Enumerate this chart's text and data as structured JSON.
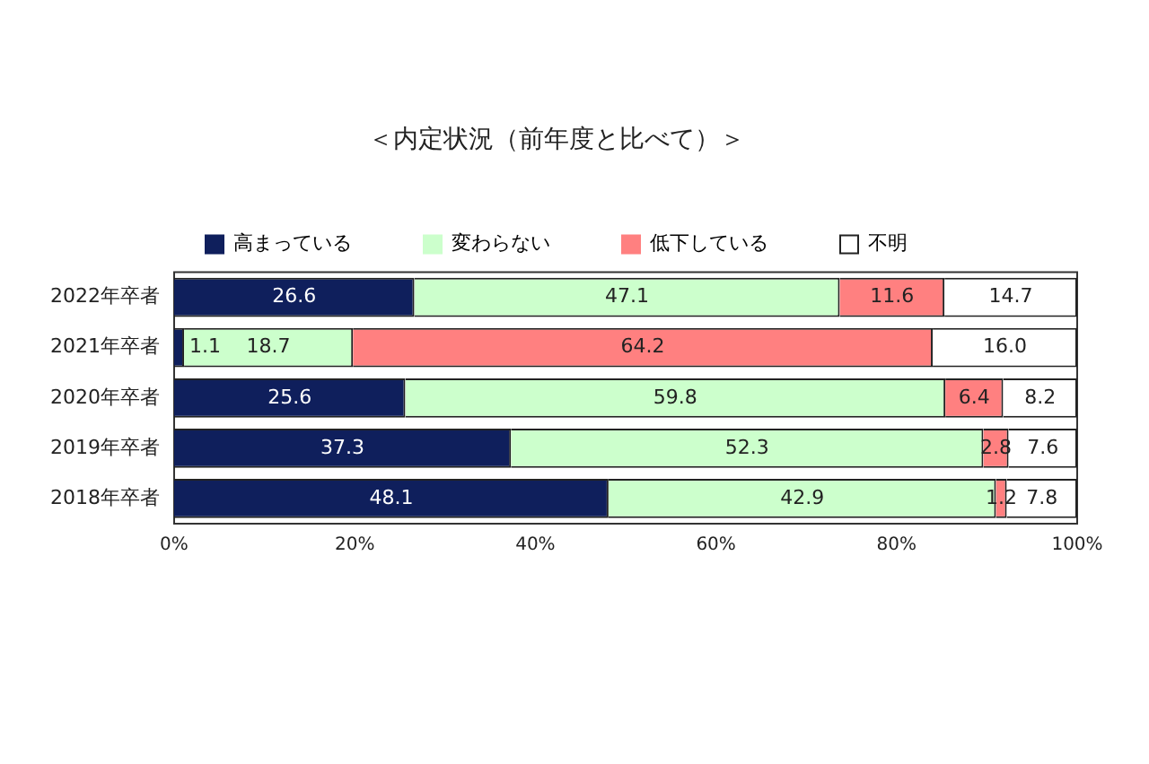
{
  "chart_data": {
    "type": "bar",
    "orientation": "horizontal",
    "stacked": true,
    "title": "＜内定状況（前年度と比べて）＞",
    "categories": [
      "2022年卒者",
      "2021年卒者",
      "2020年卒者",
      "2019年卒者",
      "2018年卒者"
    ],
    "series": [
      {
        "name": "高まっている",
        "color": "#0f1f5c",
        "values": [
          26.6,
          1.1,
          25.6,
          37.3,
          48.1
        ],
        "value_labels": [
          "26.6",
          "1.1",
          "25.6",
          "37.3",
          "48.1"
        ]
      },
      {
        "name": "変わらない",
        "color": "#ccffcc",
        "values": [
          47.1,
          18.7,
          59.8,
          52.3,
          42.9
        ],
        "value_labels": [
          "47.1",
          "18.7",
          "59.8",
          "52.3",
          "42.9"
        ]
      },
      {
        "name": "低下している",
        "color": "#ff8080",
        "values": [
          11.6,
          64.2,
          6.4,
          2.8,
          1.2
        ],
        "value_labels": [
          "11.6",
          "64.2",
          "6.4",
          "2.8",
          "1.2"
        ]
      },
      {
        "name": "不明",
        "color": "#ffffff",
        "values": [
          14.7,
          16.0,
          8.2,
          7.6,
          7.8
        ],
        "value_labels": [
          "14.7",
          "16.0",
          "8.2",
          "7.6",
          "7.8"
        ]
      }
    ],
    "xlim": [
      0,
      100
    ],
    "xticks": [
      {
        "value": 0,
        "label": "0%"
      },
      {
        "value": 20,
        "label": "20%"
      },
      {
        "value": 40,
        "label": "40%"
      },
      {
        "value": 60,
        "label": "60%"
      },
      {
        "value": 80,
        "label": "80%"
      },
      {
        "value": 100,
        "label": "100%"
      }
    ],
    "legend": "top",
    "grid": false
  }
}
